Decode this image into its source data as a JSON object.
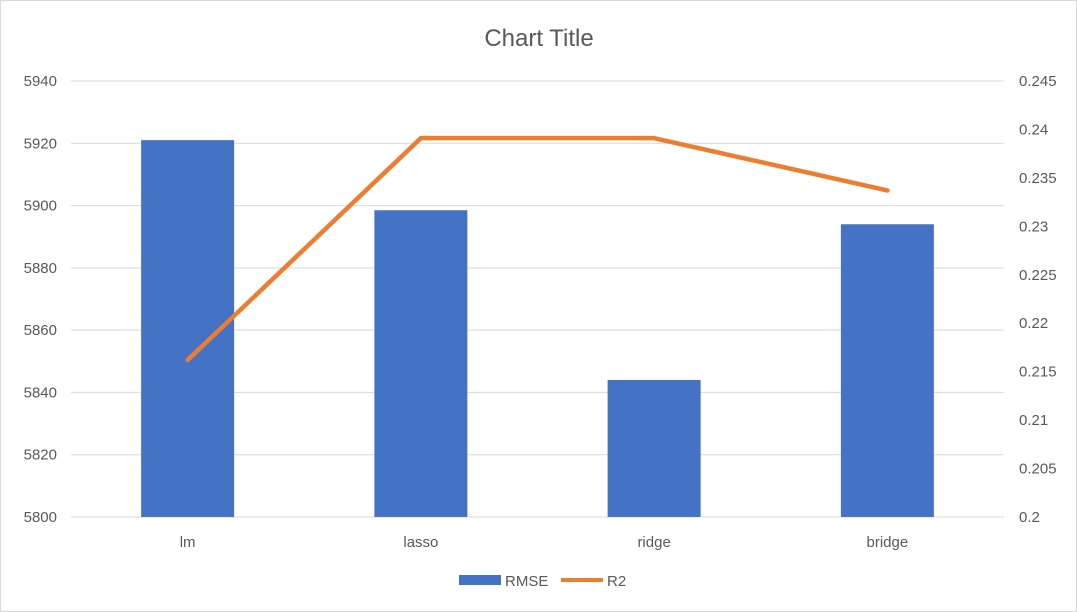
{
  "chart_data": {
    "type": "bar",
    "title": "Chart Title",
    "categories": [
      "lm",
      "lasso",
      "ridge",
      "bridge"
    ],
    "series": [
      {
        "name": "RMSE",
        "type": "bar",
        "axis": "left",
        "color": "#4472C4",
        "values": [
          5921,
          5898.5,
          5844,
          5894
        ]
      },
      {
        "name": "R2",
        "type": "line",
        "axis": "right",
        "color": "#ED7D31",
        "values": [
          0.2162,
          0.2391,
          0.2391,
          0.2337
        ]
      }
    ],
    "y_left": {
      "ylim": [
        5800,
        5940
      ],
      "ticks": [
        "5800",
        "5820",
        "5840",
        "5860",
        "5880",
        "5900",
        "5920",
        "5940"
      ]
    },
    "y_right": {
      "ylim": [
        0.2,
        0.245
      ],
      "ticks": [
        "0.2",
        "0.205",
        "0.21",
        "0.215",
        "0.22",
        "0.225",
        "0.23",
        "0.235",
        "0.24",
        "0.245"
      ]
    },
    "grid": true,
    "legend_position": "bottom"
  }
}
